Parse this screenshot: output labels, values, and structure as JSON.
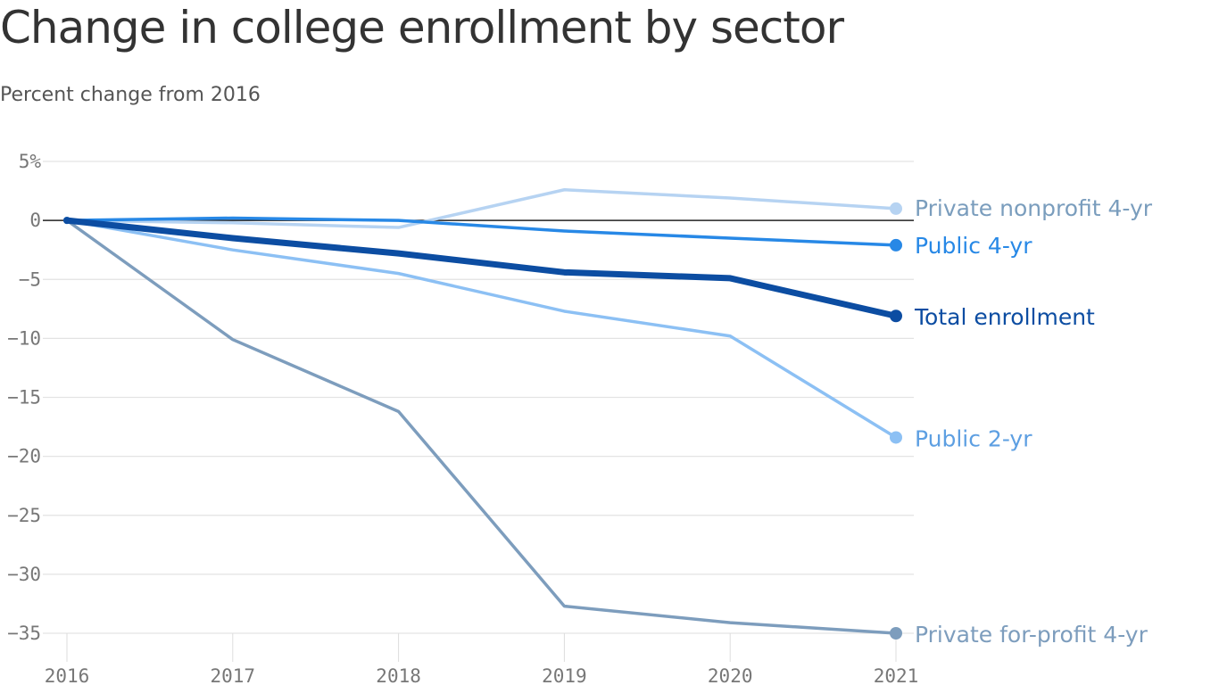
{
  "chart_data": {
    "type": "line",
    "title": "Change in college enrollment by sector",
    "subtitle": "Percent change from 2016",
    "xlabel": "",
    "ylabel": "",
    "x": [
      2016,
      2017,
      2018,
      2019,
      2020,
      2021
    ],
    "x_tick_labels": [
      "2016",
      "2017",
      "2018",
      "2019",
      "2020",
      "2021"
    ],
    "ylim": [
      -35,
      5
    ],
    "y_ticks": [
      5,
      0,
      -5,
      -10,
      -15,
      -20,
      -25,
      -30,
      -35
    ],
    "y_tick_labels": [
      "5%",
      "0",
      "−5",
      "−10",
      "−15",
      "−20",
      "−25",
      "−30",
      "−35"
    ],
    "grid": true,
    "legend": "end-of-line labels",
    "series": [
      {
        "name": "Private nonprofit 4-yr",
        "values": [
          0,
          -0.2,
          -0.6,
          2.6,
          1.9,
          1.0
        ],
        "color": "#b6d3f2",
        "label_color": "#7a9dbd",
        "weight": "light"
      },
      {
        "name": "Public 4-yr",
        "values": [
          0,
          0.2,
          0,
          -0.9,
          -1.5,
          -2.1
        ],
        "color": "#2788e6",
        "label_color": "#2788e6",
        "weight": "normal"
      },
      {
        "name": "Total enrollment",
        "values": [
          0,
          -1.5,
          -2.8,
          -4.4,
          -4.9,
          -8.1
        ],
        "color": "#0c4da2",
        "label_color": "#0c4da2",
        "weight": "bold"
      },
      {
        "name": "Public 2-yr",
        "values": [
          0,
          -2.5,
          -4.5,
          -7.7,
          -9.8,
          -18.4
        ],
        "color": "#8cc0f4",
        "label_color": "#5d9fe2",
        "weight": "normal"
      },
      {
        "name": "Private for-profit 4-yr",
        "values": [
          0,
          -10.1,
          -16.2,
          -32.7,
          -34.1,
          -35.0
        ],
        "color": "#7d9dbd",
        "label_color": "#7d9dbd",
        "weight": "normal"
      }
    ]
  }
}
